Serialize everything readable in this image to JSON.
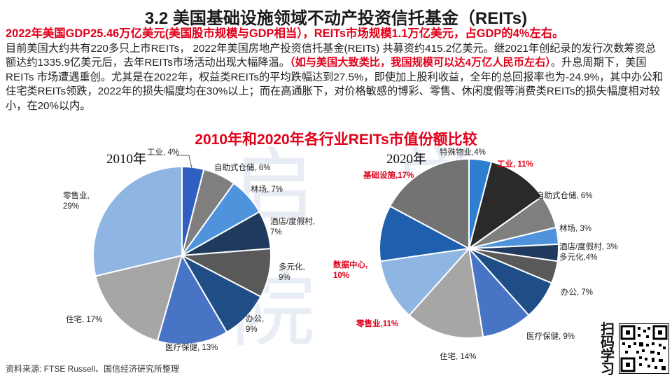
{
  "title": "3.2 美国基础设施领域不动产投资信托基金（REITs)",
  "paragraph": {
    "line1": "2022年美国GDP25.46万亿美元(美国股市规模与GDP相当），REITs市场规模1.1万亿美元，占GDP的4%左右。",
    "text_a": "目前美国大约共有220多只上市REITs，  2022年美国房地产投资信托基金(REITs) 共募资约415.2亿美元。继2021年创纪录的发行次数筹资总额达约1335.9亿美元后，去年REITs市场活动出现大幅降温。",
    "red_b": "（如与美国大致类比，我国规模可以达4万亿人民币左右）",
    "text_c": "。升息周期下，美国 REITs 市场遭遇重创。尤其是在2022年，权益类REITs的平均跌幅达到27.5%，即使加上股利收益，全年的总回报率也为-24.9%，其中办公和住宅类REITs领跌，2022年的损失幅度均在30%以上；而在高通胀下，对价格敏感的博彩、零售、休闲度假等消费类REITs的损失幅度相对较小，在20%以内。"
  },
  "source": "资料来源: FTSE Russell、国信经济研究所整理",
  "scan_text": "扫码学习",
  "watermark": "启 学 院",
  "chart_data": [
    {
      "type": "pie",
      "title": "2010年和2020年各行业REITs市值份额比较",
      "series_label": "2010年",
      "slices": [
        {
          "label": "工业",
          "value": 4,
          "color": "#2f5fc0",
          "text": "工业, 4%",
          "highlight": false
        },
        {
          "label": "自助式仓储",
          "value": 6,
          "color": "#7f7f7f",
          "text": "自助式仓储, 6%",
          "highlight": false
        },
        {
          "label": "林场",
          "value": 7,
          "color": "#4f93dc",
          "text": "林场, 7%",
          "highlight": false
        },
        {
          "label": "酒店/度假村",
          "value": 7,
          "color": "#1f3a5c",
          "text": "酒店/度假村,\n7%",
          "highlight": false
        },
        {
          "label": "多元化",
          "value": 9,
          "color": "#595959",
          "text": "多元化,\n9%",
          "highlight": false
        },
        {
          "label": "办公",
          "value": 9,
          "color": "#1e4e85",
          "text": "办公,\n9%",
          "highlight": false
        },
        {
          "label": "医疗保健",
          "value": 13,
          "color": "#4874c6",
          "text": "医疗保健, 13%",
          "highlight": false
        },
        {
          "label": "住宅",
          "value": 17,
          "color": "#a6a6a6",
          "text": "住宅, 17%",
          "highlight": false
        },
        {
          "label": "零售业",
          "value": 29,
          "color": "#8fb5e3",
          "text": "零售业,\n29%",
          "highlight": false
        }
      ]
    },
    {
      "type": "pie",
      "title": "2010年和2020年各行业REITs市值份额比较",
      "series_label": "2020年",
      "slices": [
        {
          "label": "特殊物业",
          "value": 4,
          "color": "#2f7fd0",
          "text": "特殊物业,4%",
          "highlight": false
        },
        {
          "label": "工业",
          "value": 11,
          "color": "#2a2a2a",
          "text": "工业, 11%",
          "highlight": true
        },
        {
          "label": "自助式仓储",
          "value": 6,
          "color": "#7f7f7f",
          "text": "自助式仓储, 6%",
          "highlight": false
        },
        {
          "label": "林场",
          "value": 3,
          "color": "#4f93dc",
          "text": "林场, 3%",
          "highlight": false
        },
        {
          "label": "酒店/度假村",
          "value": 3,
          "color": "#1f3a5c",
          "text": "酒店/度假村, 3%",
          "highlight": false
        },
        {
          "label": "多元化",
          "value": 4,
          "color": "#595959",
          "text": "多元化,4%",
          "highlight": false
        },
        {
          "label": "办公",
          "value": 7,
          "color": "#1e4e85",
          "text": "办公, 7%",
          "highlight": false
        },
        {
          "label": "医疗保健",
          "value": 9,
          "color": "#4874c6",
          "text": "医疗保健, 9%",
          "highlight": false
        },
        {
          "label": "住宅",
          "value": 14,
          "color": "#a6a6a6",
          "text": "住宅, 14%",
          "highlight": false
        },
        {
          "label": "零售业",
          "value": 11,
          "color": "#8fb5e3",
          "text": "零售业,11%",
          "highlight": true
        },
        {
          "label": "数据中心",
          "value": 10,
          "color": "#1f5fae",
          "text": "数据中心,\n10%",
          "highlight": true
        },
        {
          "label": "基础设施",
          "value": 17,
          "color": "#737373",
          "text": "基础设施,17%",
          "highlight": true
        }
      ]
    }
  ]
}
